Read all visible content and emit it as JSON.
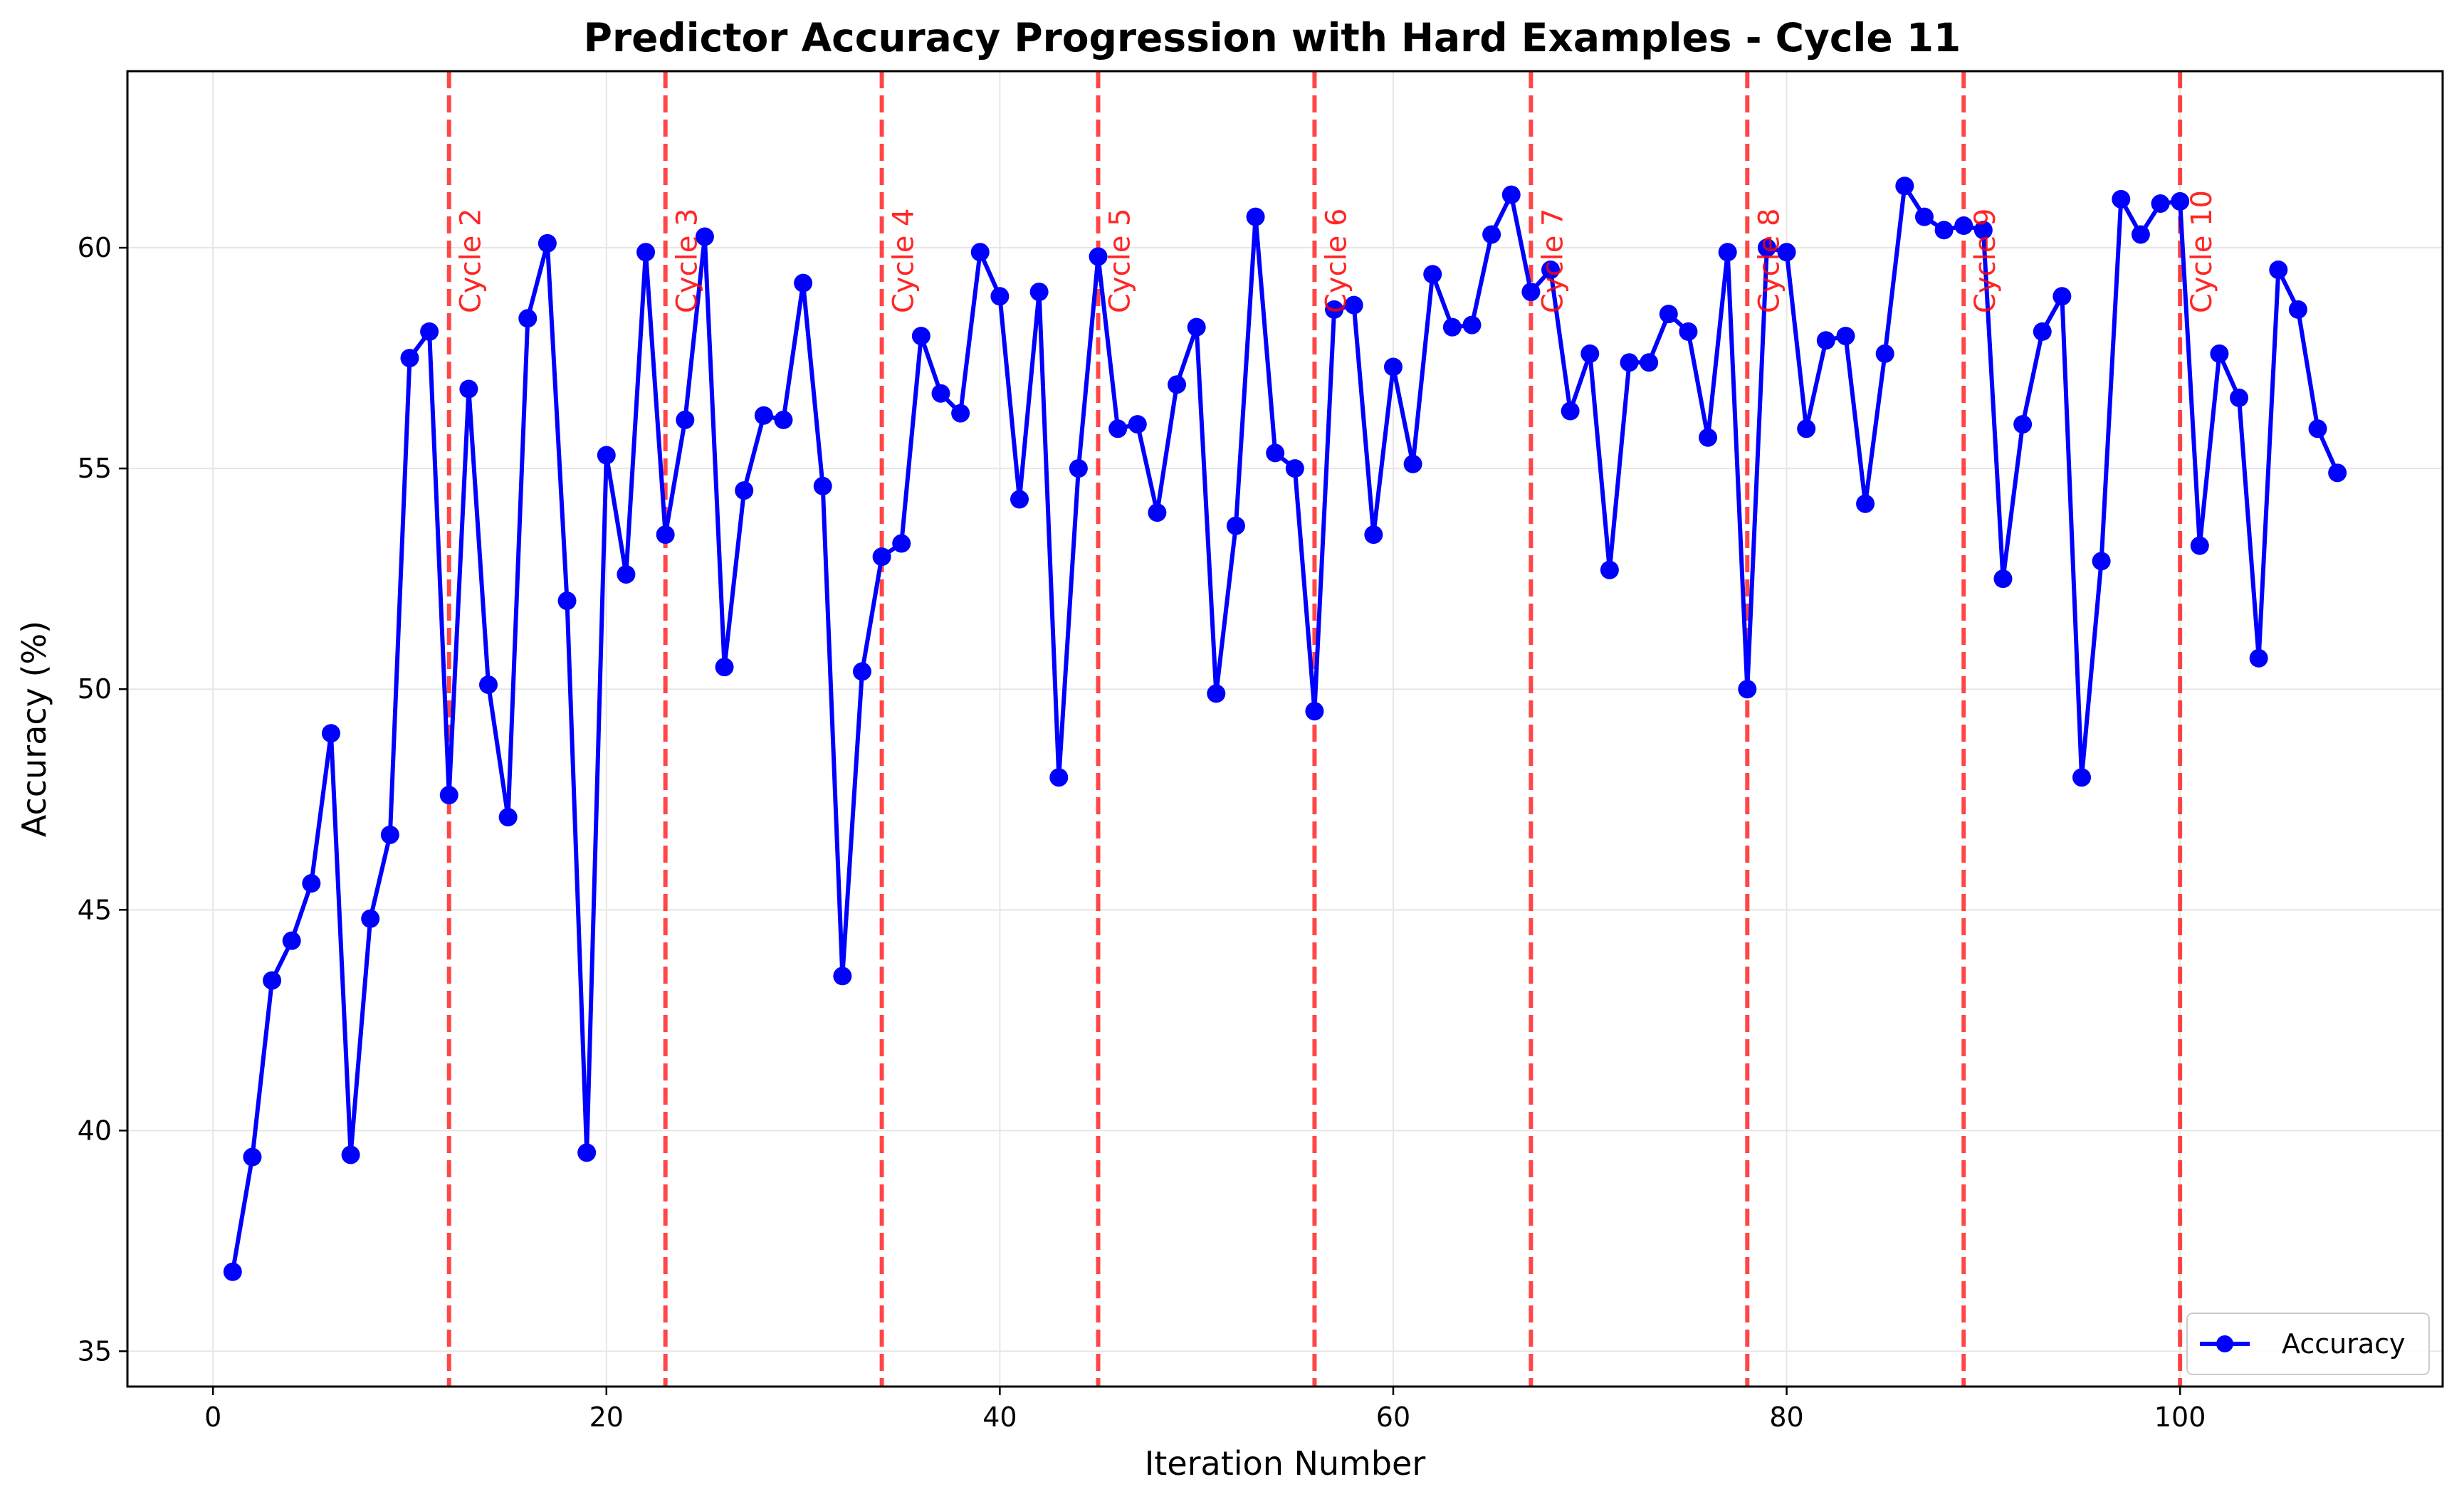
{
  "chart_data": {
    "type": "line",
    "title": "Predictor Accuracy Progression with Hard Examples - Cycle 11",
    "xlabel": "Iteration Number",
    "ylabel": "Accuracy (%)",
    "xlim": [
      -4.35,
      113.35
    ],
    "ylim": [
      34.2,
      64.0
    ],
    "xticks": [
      0,
      20,
      40,
      60,
      80,
      100
    ],
    "yticks": [
      35,
      40,
      45,
      50,
      55,
      60
    ],
    "grid": true,
    "legend": {
      "position": "lower-right",
      "entries": [
        "Accuracy"
      ]
    },
    "series": [
      {
        "name": "Accuracy",
        "color": "#0000ff",
        "marker": "circle",
        "x": [
          1,
          2,
          3,
          4,
          5,
          6,
          7,
          8,
          9,
          10,
          11,
          12,
          13,
          14,
          15,
          16,
          17,
          18,
          19,
          20,
          21,
          22,
          23,
          24,
          25,
          26,
          27,
          28,
          29,
          30,
          31,
          32,
          33,
          34,
          35,
          36,
          37,
          38,
          39,
          40,
          41,
          42,
          43,
          44,
          45,
          46,
          47,
          48,
          49,
          50,
          51,
          52,
          53,
          54,
          55,
          56,
          57,
          58,
          59,
          60,
          61,
          62,
          63,
          64,
          65,
          66,
          67,
          68,
          69,
          70,
          71,
          72,
          73,
          74,
          75,
          76,
          77,
          78,
          79,
          80,
          81,
          82,
          83,
          84,
          85,
          86,
          87,
          88,
          89,
          90,
          91,
          92,
          93,
          94,
          95,
          96,
          97,
          98,
          99,
          100,
          101,
          102,
          103,
          104,
          105,
          106,
          107,
          108
        ],
        "values": [
          36.8,
          39.4,
          43.4,
          44.3,
          45.6,
          49.0,
          39.45,
          44.8,
          46.7,
          57.5,
          58.1,
          47.6,
          56.8,
          50.1,
          47.1,
          58.4,
          60.1,
          52.0,
          39.5,
          55.3,
          52.6,
          59.9,
          53.5,
          56.1,
          60.25,
          50.5,
          54.5,
          56.2,
          56.1,
          59.2,
          54.6,
          43.5,
          50.4,
          53.0,
          53.3,
          58.0,
          56.7,
          56.25,
          59.9,
          58.9,
          54.3,
          59.0,
          48.0,
          55.0,
          59.8,
          55.9,
          56.0,
          54.0,
          56.9,
          58.2,
          49.9,
          53.7,
          60.7,
          55.35,
          55.0,
          49.5,
          58.6,
          58.7,
          53.5,
          57.3,
          55.1,
          59.4,
          58.2,
          58.25,
          60.3,
          61.2,
          59.0,
          59.5,
          56.3,
          57.6,
          52.7,
          57.4,
          57.4,
          58.5,
          58.1,
          55.7,
          59.9,
          50.0,
          60.0,
          59.9,
          55.9,
          57.9,
          58.0,
          54.2,
          57.6,
          61.4,
          60.7,
          60.4,
          60.5,
          60.4,
          52.5,
          56.0,
          58.1,
          58.9,
          48.0,
          52.9,
          61.1,
          60.3,
          61.0,
          61.05,
          53.25,
          57.6,
          56.6,
          50.7,
          59.5,
          58.6,
          55.9,
          54.9
        ]
      }
    ],
    "cycle_markers": {
      "color": "#ff0000",
      "style": "dashed",
      "items": [
        {
          "x": 12,
          "label": "Cycle 2"
        },
        {
          "x": 23,
          "label": "Cycle 3"
        },
        {
          "x": 34,
          "label": "Cycle 4"
        },
        {
          "x": 45,
          "label": "Cycle 5"
        },
        {
          "x": 56,
          "label": "Cycle 6"
        },
        {
          "x": 67,
          "label": "Cycle 7"
        },
        {
          "x": 78,
          "label": "Cycle 8"
        },
        {
          "x": 89,
          "label": "Cycle 9"
        },
        {
          "x": 100,
          "label": "Cycle 10"
        }
      ]
    }
  }
}
